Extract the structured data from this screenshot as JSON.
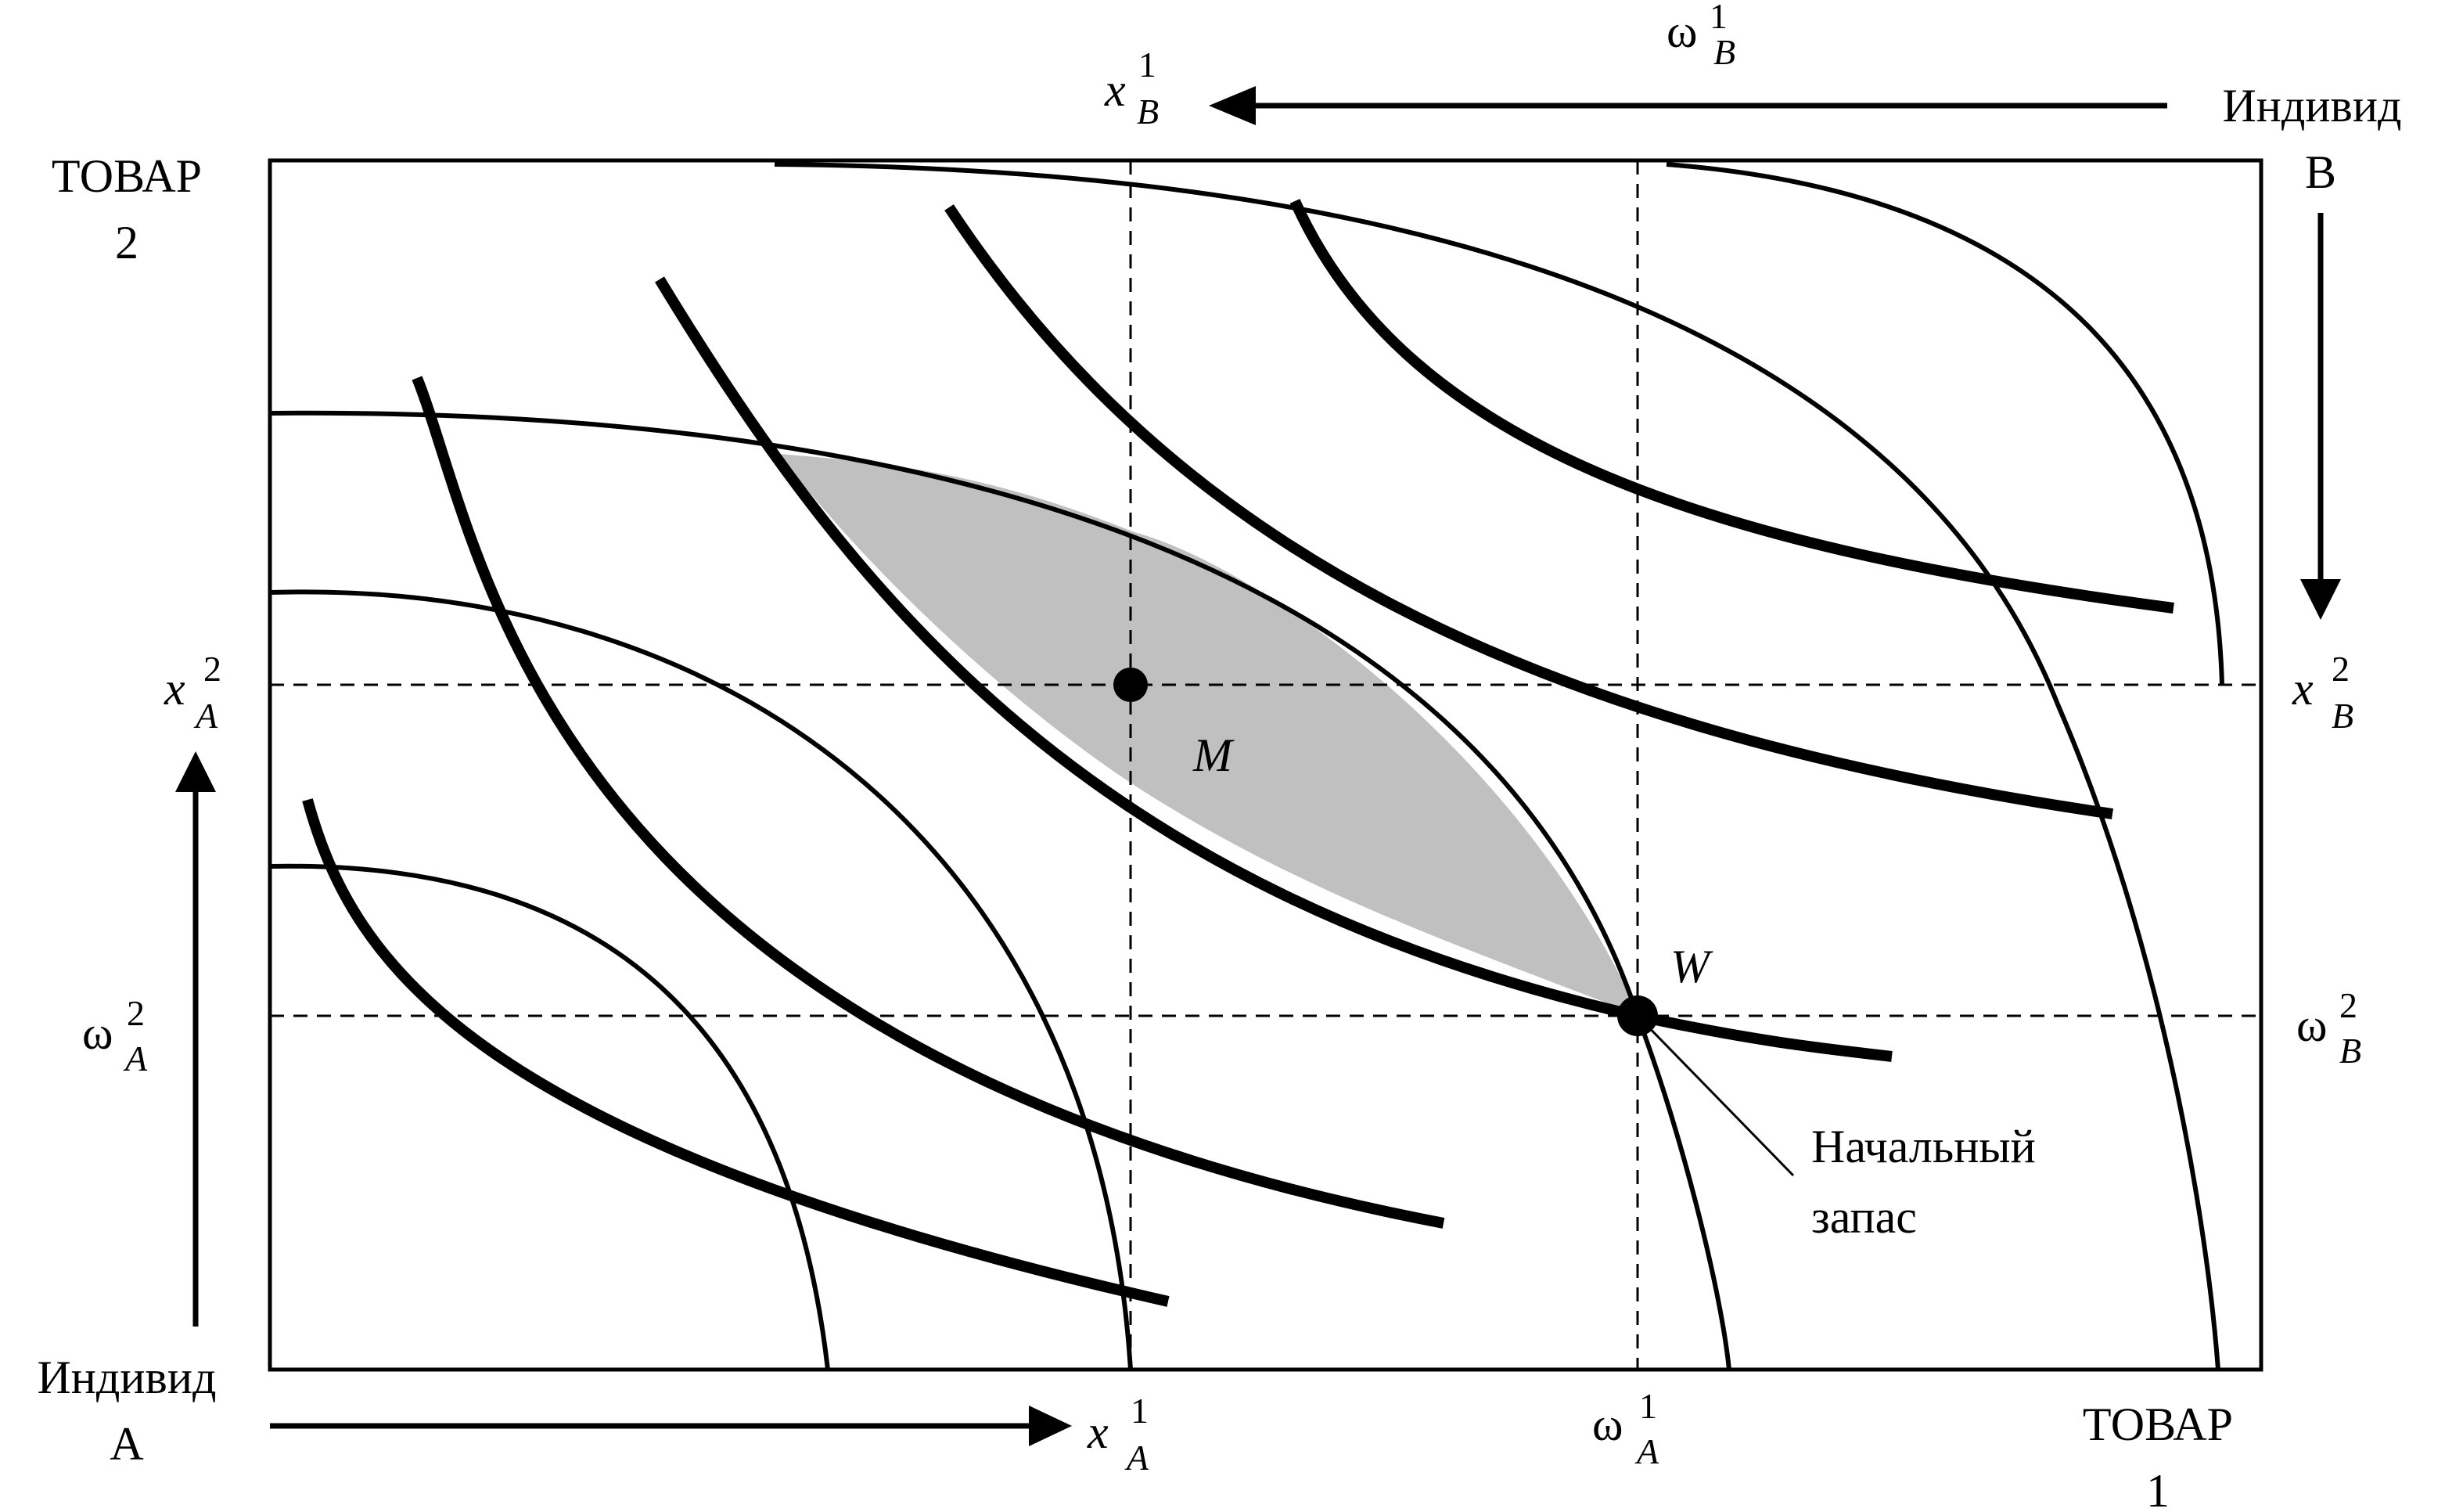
{
  "labels": {
    "good2_line1": "ТОВАР",
    "good2_line2": "2",
    "good1_line1": "ТОВАР",
    "good1_line2": "1",
    "individual_a_line1": "Индивид",
    "individual_a_line2": "А",
    "individual_b_line1": "Индивид",
    "individual_b_line2": "В",
    "endowment_line1": "Начальный",
    "endowment_line2": "запас",
    "point_m": "M",
    "point_w": "W"
  },
  "axis_symbols": {
    "x": "x",
    "omega": "ω",
    "sub_a": "A",
    "sub_b": "B",
    "sup_1": "1",
    "sup_2": "2"
  },
  "colors": {
    "ink": "#000000",
    "lens_fill": "#c0c0c0",
    "background": "#ffffff"
  }
}
